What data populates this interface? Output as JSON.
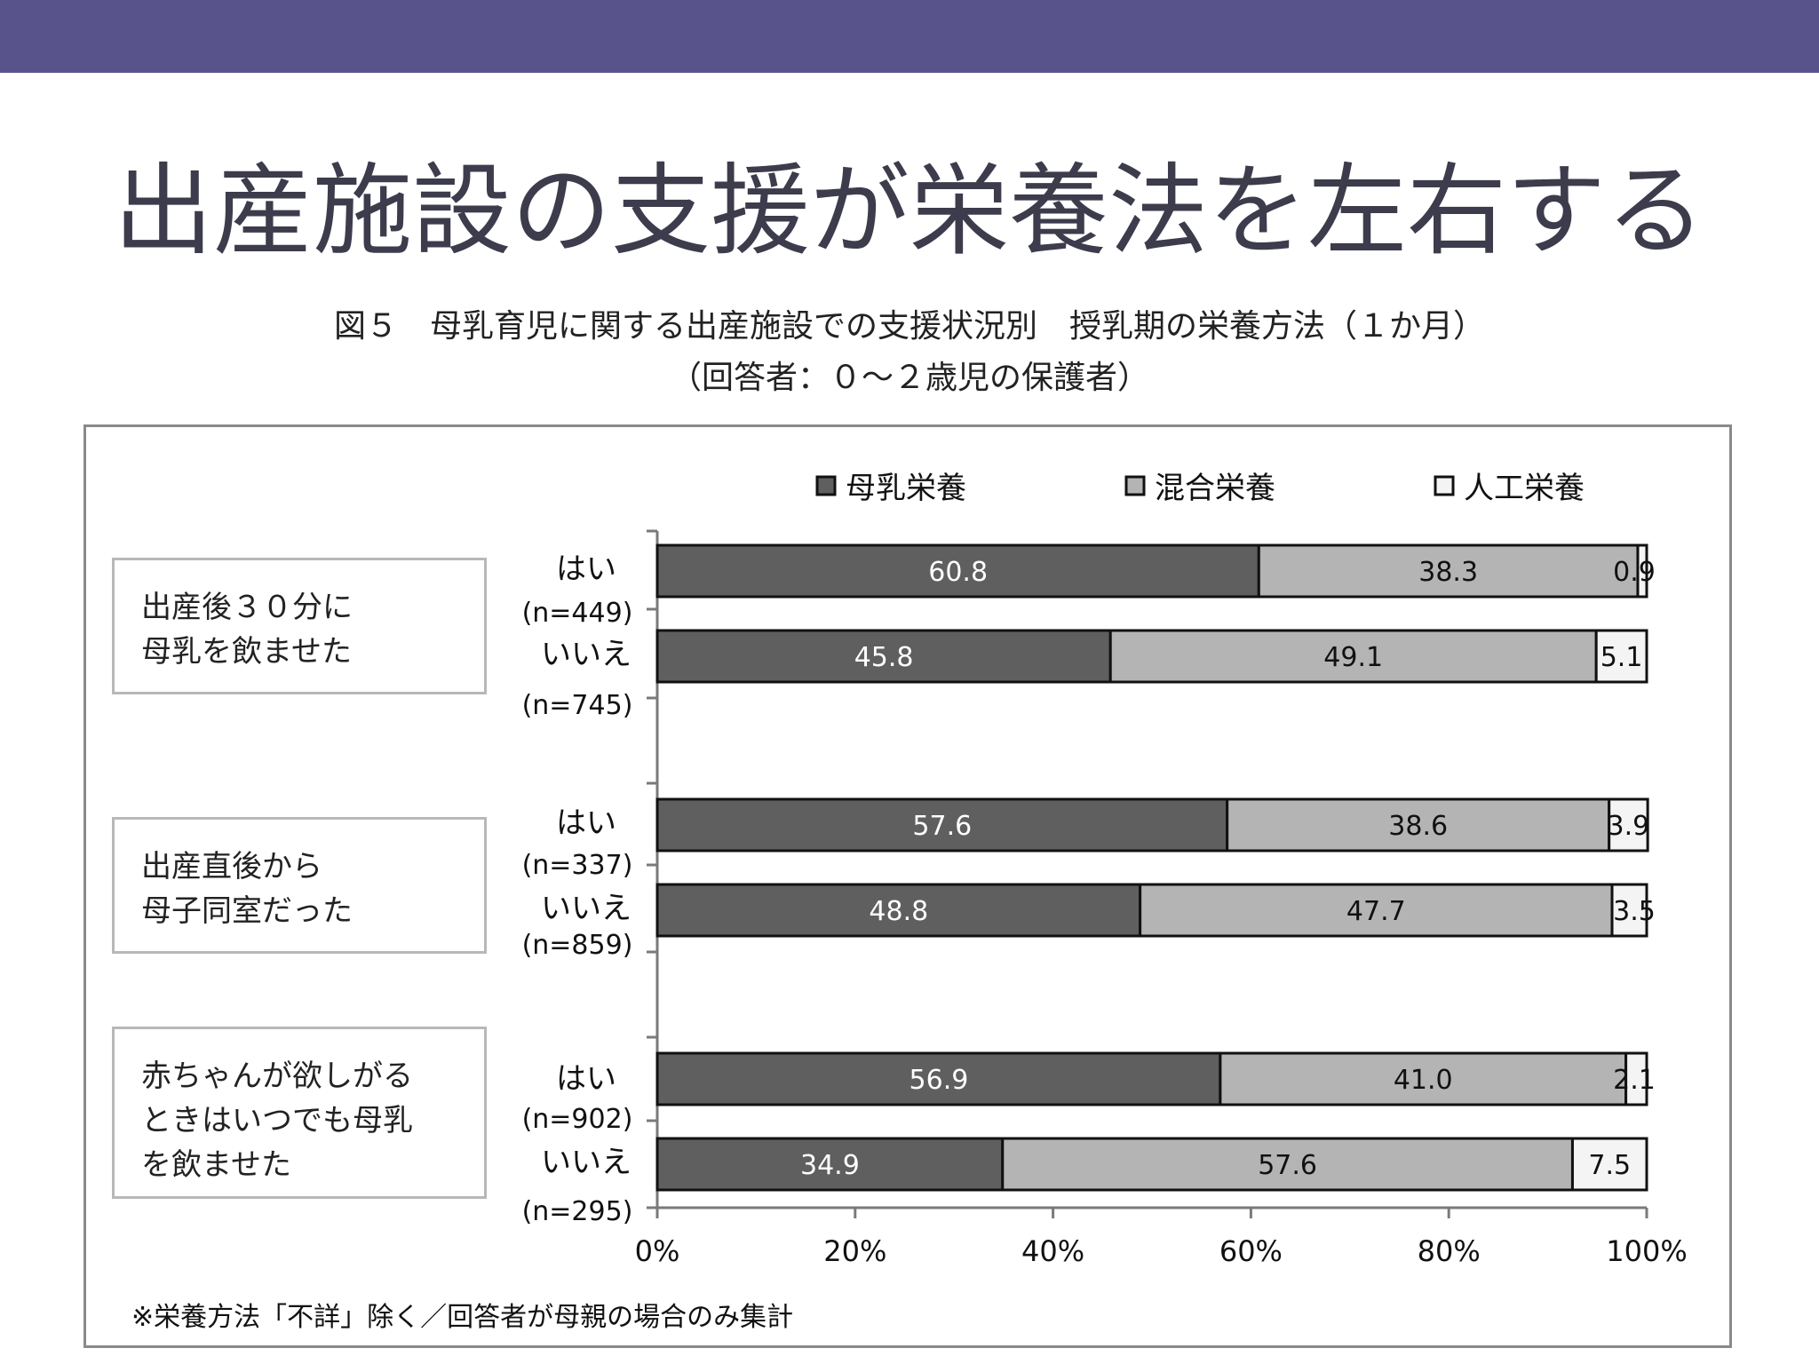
{
  "slide": {
    "title": "出産施設の支援が栄養法を左右する",
    "figure_title": "図５　母乳育児に関する出産施設での支援状況別　授乳期の栄養方法（１か月）",
    "figure_subtitle": "（回答者：０～２歳児の保護者）",
    "footnote": "※栄養方法「不詳」除く／回答者が母親の場合のみ集計",
    "colors": {
      "header_bar": "#58548b",
      "title_text": "#3c3c4c"
    }
  },
  "chart_data": {
    "type": "bar",
    "orientation": "horizontal",
    "stacked": true,
    "xlim": [
      0,
      100
    ],
    "x_ticks": [
      "0%",
      "20%",
      "40%",
      "60%",
      "80%",
      "100%"
    ],
    "legend_position": "top",
    "series": [
      {
        "name": "母乳栄養",
        "color": "#5f5f5f"
      },
      {
        "name": "混合栄養",
        "color": "#b4b4b4"
      },
      {
        "name": "人工栄養",
        "color": "#f4f4f4"
      }
    ],
    "groups": [
      {
        "label_lines": [
          "出産後３０分に",
          "母乳を飲ませた"
        ],
        "bars": [
          {
            "answer": "はい",
            "n": "(n=449)",
            "values": [
              60.8,
              38.3,
              0.9
            ],
            "value_labels": [
              "60.8",
              "38.3",
              "0.9"
            ]
          },
          {
            "answer": "いいえ",
            "n": "(n=745)",
            "values": [
              45.8,
              49.1,
              5.1
            ],
            "value_labels": [
              "45.8",
              "49.1",
              "5.1"
            ]
          }
        ]
      },
      {
        "label_lines": [
          "出産直後から",
          "母子同室だった"
        ],
        "bars": [
          {
            "answer": "はい",
            "n": "(n=337)",
            "values": [
              57.6,
              38.6,
              3.9
            ],
            "value_labels": [
              "57.6",
              "38.6",
              "3.9"
            ]
          },
          {
            "answer": "いいえ",
            "n": "(n=859)",
            "values": [
              48.8,
              47.7,
              3.5
            ],
            "value_labels": [
              "48.8",
              "47.7",
              "3.5"
            ]
          }
        ]
      },
      {
        "label_lines": [
          "赤ちゃんが欲しがる",
          "ときはいつでも母乳",
          "を飲ませた"
        ],
        "bars": [
          {
            "answer": "はい",
            "n": "(n=902)",
            "values": [
              56.9,
              41.0,
              2.1
            ],
            "value_labels": [
              "56.9",
              "41.0",
              "2.1"
            ]
          },
          {
            "answer": "いいえ",
            "n": "(n=295)",
            "values": [
              34.9,
              57.6,
              7.5
            ],
            "value_labels": [
              "34.9",
              "57.6",
              "7.5"
            ]
          }
        ]
      }
    ]
  }
}
